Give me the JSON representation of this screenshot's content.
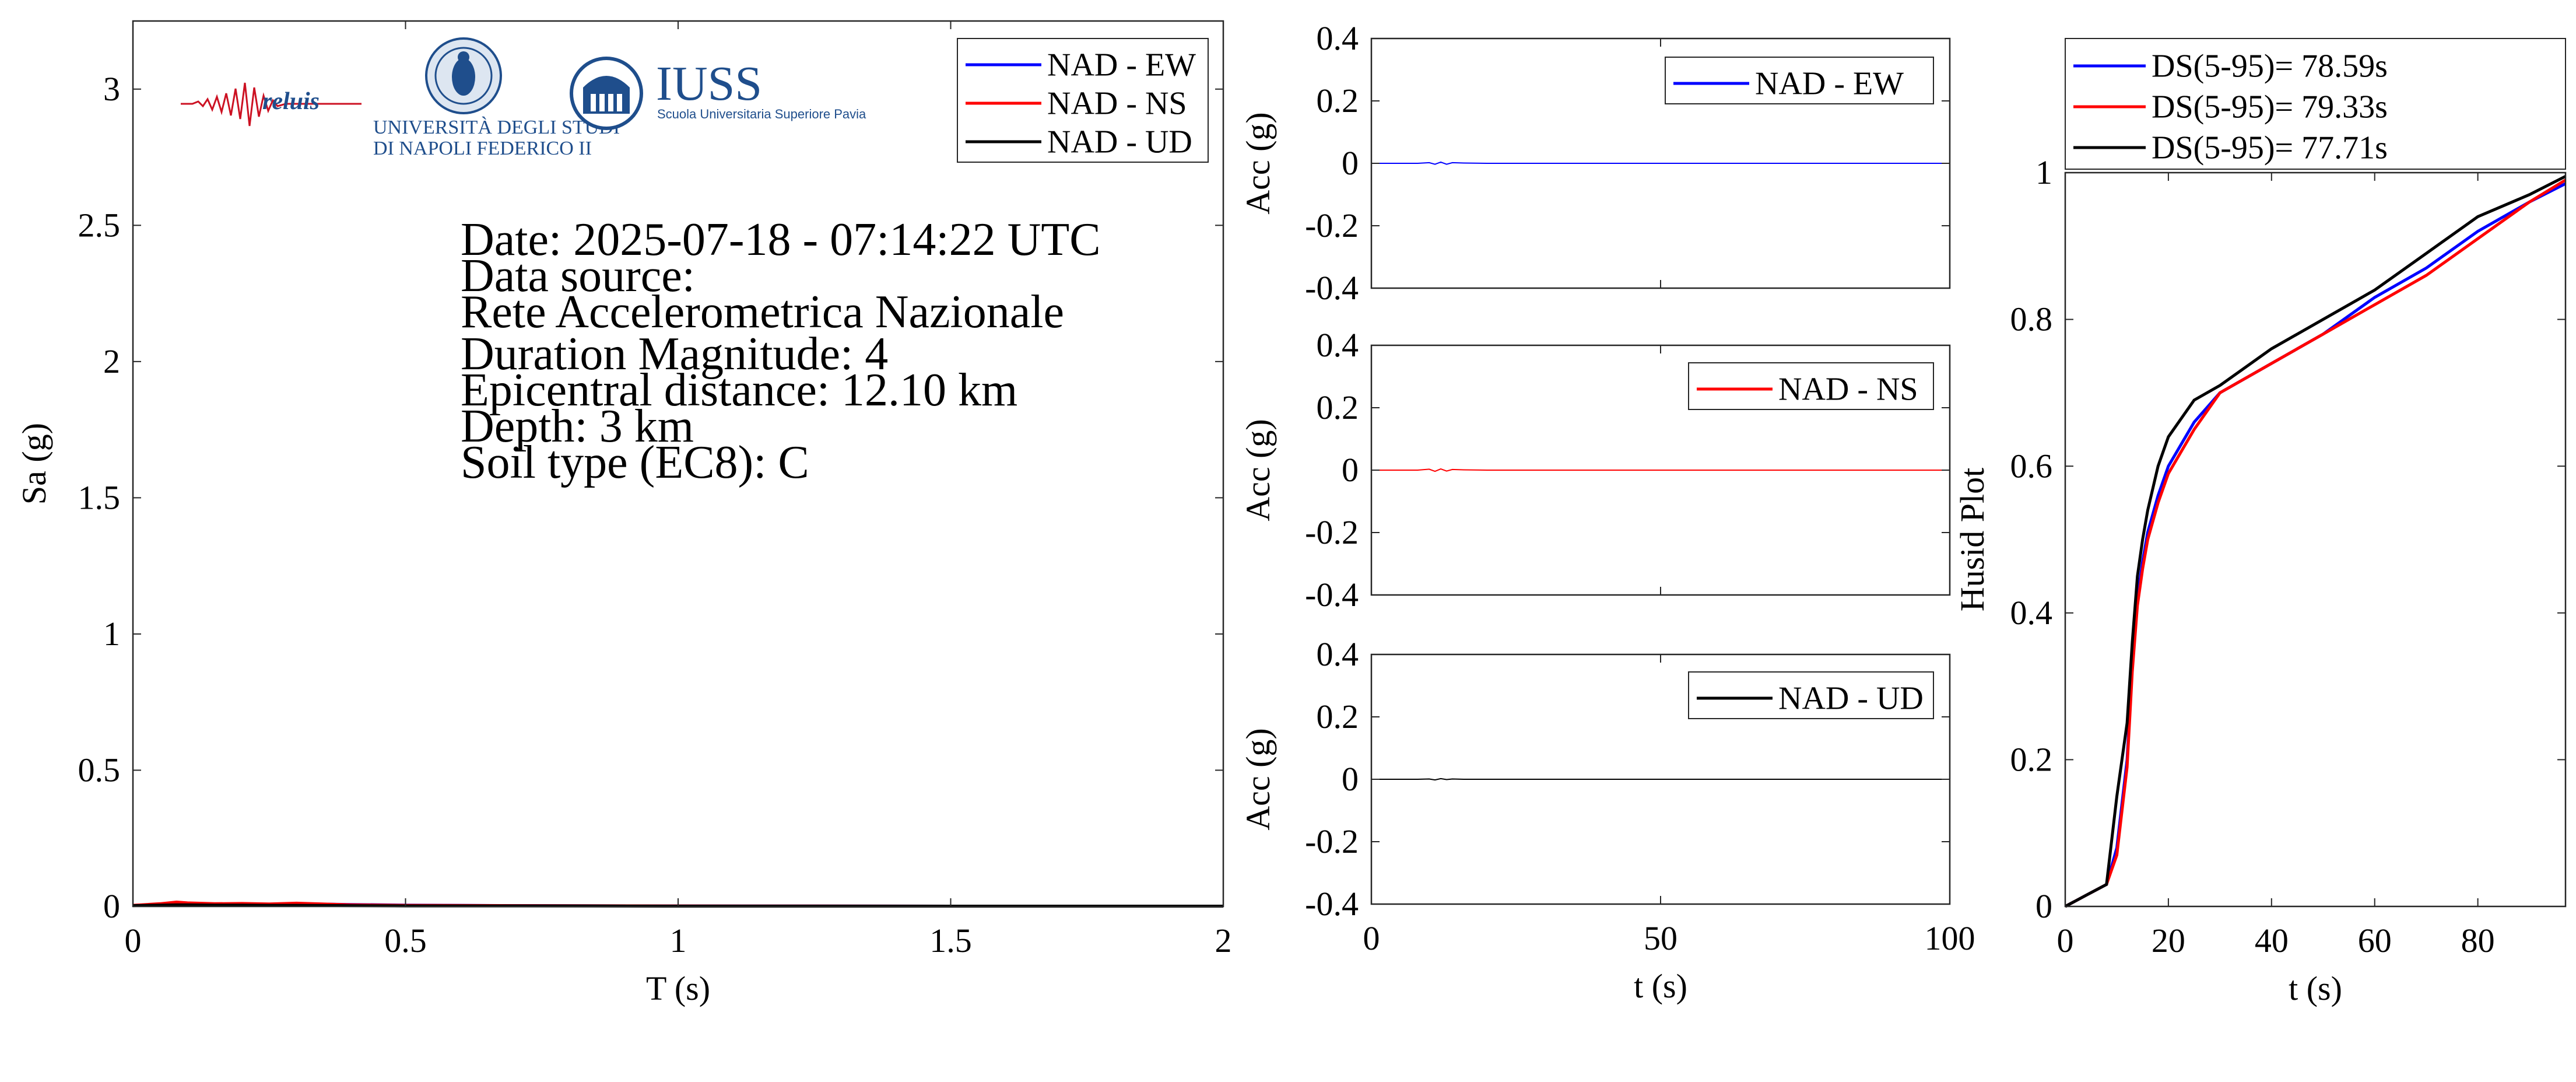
{
  "info": {
    "date": "Date: 2025-07-18 - 07:14:22 UTC",
    "source_label": "Data source:",
    "source_name": "Rete Accelerometrica Nazionale",
    "magnitude": "Duration Magnitude: 4",
    "distance": "Epicentral distance: 12.10 km",
    "depth": "Depth: 3 km",
    "soil": "Soil type (EC8): C"
  },
  "logos": {
    "reluis": "reluis",
    "unina_line1": "UNIVERSITÀ DEGLI STUDI",
    "unina_line2": "DI NAPOLI FEDERICO II",
    "iuss": "IUSS",
    "iuss_sub": "Scuola Universitaria Superiore Pavia"
  },
  "colors": {
    "ew": "#0000ff",
    "ns": "#ff0000",
    "ud": "#000000",
    "axis": "#262626",
    "logo_red": "#cc1122",
    "logo_blue": "#1f4e8c"
  },
  "chart_data": [
    {
      "id": "spectrum",
      "type": "line",
      "xlabel": "T (s)",
      "ylabel": "Sa (g)",
      "xlim": [
        0,
        2
      ],
      "ylim": [
        0,
        3.25
      ],
      "xticks": [
        0,
        0.5,
        1,
        1.5,
        2
      ],
      "xticklabels": [
        "0",
        "0.5",
        "1",
        "1.5",
        "2"
      ],
      "yticks": [
        0,
        0.5,
        1,
        1.5,
        2,
        2.5,
        3
      ],
      "yticklabels": [
        "0",
        "0.5",
        "1",
        "1.5",
        "2",
        "2.5",
        "3"
      ],
      "legend": "top-right",
      "grid": false,
      "series": [
        {
          "name": "NAD - EW",
          "color": "#0000ff",
          "x": [
            0,
            0.05,
            0.08,
            0.1,
            0.15,
            0.2,
            0.25,
            0.3,
            0.4,
            0.5,
            0.7,
            1.0,
            1.5,
            2.0
          ],
          "y": [
            0.004,
            0.008,
            0.012,
            0.01,
            0.009,
            0.01,
            0.008,
            0.01,
            0.007,
            0.005,
            0.003,
            0.002,
            0.001,
            0.001
          ]
        },
        {
          "name": "NAD - NS",
          "color": "#ff0000",
          "x": [
            0,
            0.05,
            0.08,
            0.1,
            0.15,
            0.2,
            0.25,
            0.3,
            0.4,
            0.5,
            0.7,
            1.0,
            1.5,
            2.0
          ],
          "y": [
            0.004,
            0.01,
            0.016,
            0.013,
            0.01,
            0.011,
            0.009,
            0.012,
            0.006,
            0.004,
            0.003,
            0.002,
            0.001,
            0.001
          ]
        },
        {
          "name": "NAD - UD",
          "color": "#000000",
          "x": [
            0,
            0.05,
            0.08,
            0.1,
            0.15,
            0.2,
            0.25,
            0.3,
            0.4,
            0.5,
            0.7,
            1.0,
            1.5,
            2.0
          ],
          "y": [
            0.003,
            0.005,
            0.006,
            0.006,
            0.005,
            0.005,
            0.004,
            0.004,
            0.003,
            0.002,
            0.002,
            0.001,
            0.001,
            0.001
          ]
        }
      ]
    },
    {
      "id": "acc-ew",
      "type": "line",
      "xlabel": "",
      "ylabel": "Acc (g)",
      "xlim": [
        0,
        100
      ],
      "ylim": [
        -0.4,
        0.4
      ],
      "xticks": [
        0,
        50,
        100
      ],
      "yticks": [
        0.4,
        0.2,
        0,
        -0.2,
        -0.4
      ],
      "yticklabels": [
        "0.4",
        "0.2",
        "0",
        "-0.2",
        "-0.4"
      ],
      "legend": "top-right",
      "series": [
        {
          "name": "NAD - EW",
          "color": "#0000ff",
          "x": [
            0,
            8,
            10,
            11,
            12,
            13,
            14,
            16,
            20,
            100
          ],
          "y": [
            0,
            0,
            0.002,
            -0.003,
            0.004,
            -0.003,
            0.002,
            0.001,
            0,
            0
          ]
        }
      ]
    },
    {
      "id": "acc-ns",
      "type": "line",
      "xlabel": "",
      "ylabel": "Acc (g)",
      "xlim": [
        0,
        100
      ],
      "ylim": [
        -0.4,
        0.4
      ],
      "xticks": [
        0,
        50,
        100
      ],
      "yticks": [
        0.4,
        0.2,
        0,
        -0.2,
        -0.4
      ],
      "yticklabels": [
        "0.4",
        "0.2",
        "0",
        "-0.2",
        "-0.4"
      ],
      "legend": "top-right",
      "series": [
        {
          "name": "NAD - NS",
          "color": "#ff0000",
          "x": [
            0,
            8,
            10,
            11,
            12,
            13,
            14,
            16,
            20,
            100
          ],
          "y": [
            0,
            0,
            0.003,
            -0.004,
            0.004,
            -0.003,
            0.002,
            0.001,
            0,
            0
          ]
        }
      ]
    },
    {
      "id": "acc-ud",
      "type": "line",
      "xlabel": "t (s)",
      "ylabel": "Acc (g)",
      "xlim": [
        0,
        100
      ],
      "ylim": [
        -0.4,
        0.4
      ],
      "xticks": [
        0,
        50,
        100
      ],
      "xticklabels": [
        "0",
        "50",
        "100"
      ],
      "yticks": [
        0.4,
        0.2,
        0,
        -0.2,
        -0.4
      ],
      "yticklabels": [
        "0.4",
        "0.2",
        "0",
        "-0.2",
        "-0.4"
      ],
      "legend": "top-right",
      "series": [
        {
          "name": "NAD - UD",
          "color": "#000000",
          "x": [
            0,
            8,
            10,
            11,
            12,
            13,
            14,
            16,
            20,
            100
          ],
          "y": [
            0,
            0,
            0.001,
            -0.002,
            0.002,
            -0.001,
            0.001,
            0,
            0,
            0
          ]
        }
      ]
    },
    {
      "id": "husid",
      "type": "line",
      "xlabel": "t (s)",
      "ylabel": "Husid Plot",
      "xlim": [
        0,
        97
      ],
      "ylim": [
        0,
        1
      ],
      "xticks": [
        0,
        20,
        40,
        60,
        80
      ],
      "xticklabels": [
        "0",
        "20",
        "40",
        "60",
        "80"
      ],
      "yticks": [
        0,
        0.2,
        0.4,
        0.6,
        0.8,
        1
      ],
      "yticklabels": [
        "0",
        "0.2",
        "0.4",
        "0.6",
        "0.8",
        "1"
      ],
      "legend": "top-outside",
      "series": [
        {
          "name": "DS(5-95)= 78.59s",
          "color": "#0000ff",
          "x": [
            0,
            4,
            8,
            10,
            12,
            13,
            14,
            15,
            16,
            18,
            20,
            25,
            30,
            40,
            50,
            60,
            70,
            80,
            90,
            97
          ],
          "y": [
            0,
            0.015,
            0.03,
            0.08,
            0.2,
            0.33,
            0.42,
            0.47,
            0.51,
            0.56,
            0.6,
            0.66,
            0.7,
            0.74,
            0.78,
            0.83,
            0.87,
            0.92,
            0.96,
            0.985
          ]
        },
        {
          "name": "DS(5-95)= 79.33s",
          "color": "#ff0000",
          "x": [
            0,
            4,
            8,
            10,
            12,
            13,
            14,
            15,
            16,
            18,
            20,
            25,
            30,
            40,
            50,
            60,
            70,
            80,
            90,
            97
          ],
          "y": [
            0,
            0.015,
            0.03,
            0.07,
            0.19,
            0.32,
            0.41,
            0.46,
            0.5,
            0.55,
            0.59,
            0.65,
            0.7,
            0.74,
            0.78,
            0.82,
            0.86,
            0.91,
            0.96,
            0.99
          ]
        },
        {
          "name": "DS(5-95)= 77.71s",
          "color": "#000000",
          "x": [
            0,
            4,
            8,
            10,
            12,
            13,
            14,
            15,
            16,
            18,
            20,
            25,
            30,
            40,
            50,
            60,
            70,
            80,
            90,
            97
          ],
          "y": [
            0,
            0.015,
            0.03,
            0.15,
            0.25,
            0.36,
            0.45,
            0.5,
            0.54,
            0.6,
            0.64,
            0.69,
            0.71,
            0.76,
            0.8,
            0.84,
            0.89,
            0.94,
            0.97,
            0.995
          ]
        }
      ]
    }
  ]
}
